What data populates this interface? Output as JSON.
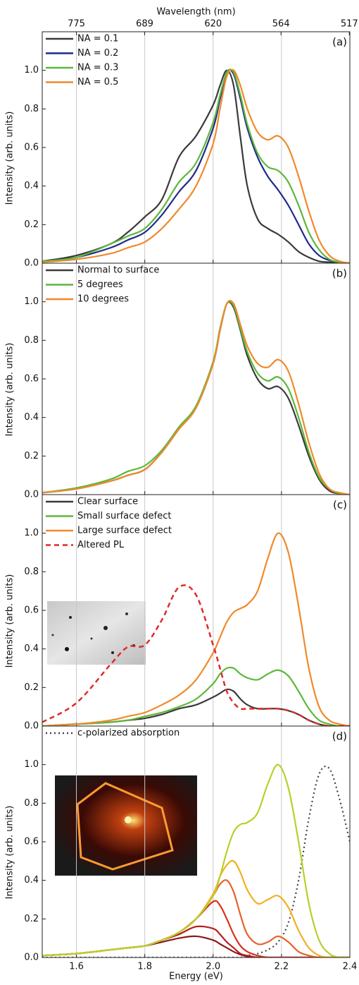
{
  "chart_data": [
    {
      "type": "line",
      "label": "(a)",
      "ylabel": "Intensity (arb. units)",
      "x2label": "Wavelength (nm)",
      "x2ticks": [
        775,
        689,
        620,
        564,
        517
      ],
      "x": [
        1.5,
        1.6,
        1.7,
        1.75,
        1.8,
        1.85,
        1.9,
        1.95,
        2.0,
        2.02,
        2.04,
        2.06,
        2.08,
        2.1,
        2.13,
        2.16,
        2.19,
        2.22,
        2.25,
        2.28,
        2.31,
        2.34,
        2.37,
        2.4
      ],
      "xlim": [
        1.5,
        2.4
      ],
      "xticks": [
        1.6,
        1.8,
        2,
        2.2,
        2.4
      ],
      "ylim": [
        0,
        1.2
      ],
      "yticks": [
        {
          "value": 0,
          "label": "0.0"
        },
        0.2,
        0.4,
        0.6,
        0.8,
        {
          "value": 1,
          "label": "1.0"
        }
      ],
      "grid": "x",
      "legend": "upper left",
      "series": [
        {
          "name": "NA = 0.1",
          "color": "#3a3a3a",
          "values": [
            0.01,
            0.04,
            0.1,
            0.16,
            0.24,
            0.33,
            0.55,
            0.66,
            0.82,
            0.92,
            1.0,
            0.92,
            0.65,
            0.4,
            0.23,
            0.18,
            0.15,
            0.11,
            0.06,
            0.03,
            0.01,
            0.005,
            0,
            0
          ]
        },
        {
          "name": "NA = 0.2",
          "color": "#1f2a8c",
          "values": [
            0.01,
            0.03,
            0.08,
            0.12,
            0.16,
            0.25,
            0.37,
            0.48,
            0.7,
            0.85,
            0.99,
            0.98,
            0.85,
            0.7,
            0.55,
            0.45,
            0.38,
            0.3,
            0.2,
            0.1,
            0.04,
            0.015,
            0.005,
            0
          ]
        },
        {
          "name": "NA = 0.3",
          "color": "#5cb83a",
          "values": [
            0.01,
            0.03,
            0.1,
            0.14,
            0.18,
            0.28,
            0.42,
            0.52,
            0.73,
            0.87,
            0.99,
            0.99,
            0.87,
            0.72,
            0.57,
            0.5,
            0.48,
            0.42,
            0.3,
            0.16,
            0.07,
            0.02,
            0.005,
            0
          ]
        },
        {
          "name": "NA = 0.5",
          "color": "#f0892a",
          "values": [
            0.005,
            0.02,
            0.05,
            0.08,
            0.11,
            0.18,
            0.28,
            0.4,
            0.62,
            0.8,
            0.97,
            1.0,
            0.92,
            0.8,
            0.68,
            0.64,
            0.66,
            0.6,
            0.45,
            0.27,
            0.12,
            0.04,
            0.01,
            0
          ]
        }
      ]
    },
    {
      "type": "line",
      "label": "(b)",
      "ylabel": "Intensity (arb. units)",
      "x": [
        1.5,
        1.6,
        1.7,
        1.75,
        1.8,
        1.85,
        1.9,
        1.95,
        2.0,
        2.02,
        2.04,
        2.06,
        2.08,
        2.1,
        2.13,
        2.16,
        2.19,
        2.22,
        2.25,
        2.28,
        2.31,
        2.34,
        2.37,
        2.4
      ],
      "xlim": [
        1.5,
        2.4
      ],
      "xticks": [
        1.6,
        1.8,
        2,
        2.2,
        2.4
      ],
      "ylim": [
        0,
        1.2
      ],
      "yticks": [
        {
          "value": 0,
          "label": "0.0"
        },
        0.2,
        0.4,
        0.6,
        0.8,
        {
          "value": 1,
          "label": "1.0"
        }
      ],
      "grid": "x",
      "legend": "upper left",
      "series": [
        {
          "name": "Normal to surface",
          "color": "#3a3a3a",
          "values": [
            0.01,
            0.03,
            0.07,
            0.1,
            0.13,
            0.22,
            0.34,
            0.45,
            0.68,
            0.85,
            0.99,
            0.97,
            0.85,
            0.72,
            0.6,
            0.55,
            0.56,
            0.5,
            0.36,
            0.2,
            0.08,
            0.02,
            0.005,
            0
          ]
        },
        {
          "name": "5 degrees",
          "color": "#5cb83a",
          "values": [
            0.01,
            0.035,
            0.08,
            0.12,
            0.15,
            0.23,
            0.35,
            0.46,
            0.69,
            0.86,
            0.99,
            0.98,
            0.86,
            0.74,
            0.63,
            0.59,
            0.61,
            0.55,
            0.4,
            0.22,
            0.09,
            0.03,
            0.005,
            0
          ]
        },
        {
          "name": "10 degrees",
          "color": "#f0892a",
          "values": [
            0.01,
            0.03,
            0.07,
            0.1,
            0.13,
            0.22,
            0.34,
            0.45,
            0.68,
            0.85,
            0.99,
            0.99,
            0.88,
            0.77,
            0.68,
            0.66,
            0.7,
            0.64,
            0.47,
            0.27,
            0.11,
            0.03,
            0.01,
            0
          ]
        }
      ]
    },
    {
      "type": "line",
      "label": "(c)",
      "ylabel": "Intensity (arb. units)",
      "x": [
        1.5,
        1.6,
        1.7,
        1.75,
        1.8,
        1.85,
        1.9,
        1.95,
        2.0,
        2.02,
        2.04,
        2.06,
        2.08,
        2.1,
        2.13,
        2.16,
        2.19,
        2.22,
        2.25,
        2.28,
        2.31,
        2.34,
        2.37,
        2.4
      ],
      "xlim": [
        1.5,
        2.4
      ],
      "xticks": [
        1.6,
        1.8,
        2,
        2.2,
        2.4
      ],
      "ylim": [
        0,
        1.2
      ],
      "yticks": [
        {
          "value": 0,
          "label": "0.0"
        },
        0.2,
        0.4,
        0.6,
        0.8,
        {
          "value": 1,
          "label": "1.0"
        }
      ],
      "grid": "x",
      "legend": "upper left",
      "series": [
        {
          "name": "Clear surface",
          "color": "#3a3a3a",
          "values": [
            0,
            0.01,
            0.02,
            0.03,
            0.04,
            0.06,
            0.09,
            0.11,
            0.15,
            0.17,
            0.19,
            0.18,
            0.14,
            0.11,
            0.09,
            0.09,
            0.09,
            0.08,
            0.06,
            0.03,
            0.01,
            0,
            0,
            0
          ]
        },
        {
          "name": "Small surface defect",
          "color": "#5cb83a",
          "values": [
            0,
            0.01,
            0.02,
            0.03,
            0.05,
            0.07,
            0.1,
            0.14,
            0.22,
            0.27,
            0.3,
            0.3,
            0.27,
            0.25,
            0.24,
            0.27,
            0.29,
            0.26,
            0.18,
            0.09,
            0.03,
            0.01,
            0,
            0
          ]
        },
        {
          "name": "Large surface defect",
          "color": "#f0892a",
          "values": [
            0,
            0.01,
            0.03,
            0.05,
            0.07,
            0.11,
            0.16,
            0.24,
            0.38,
            0.46,
            0.54,
            0.59,
            0.61,
            0.63,
            0.7,
            0.87,
            1.0,
            0.9,
            0.62,
            0.3,
            0.1,
            0.03,
            0.01,
            0
          ]
        },
        {
          "name": "Altered PL",
          "color": "#e02a2a",
          "dash": "dashed",
          "values": [
            0.02,
            0.12,
            0.32,
            0.41,
            0.42,
            0.55,
            0.72,
            0.68,
            0.42,
            0.3,
            0.18,
            0.12,
            0.09,
            0.09,
            0.09,
            0.09,
            0.09,
            0.08,
            0.06,
            0.03,
            0.01,
            0,
            0,
            0
          ]
        }
      ]
    },
    {
      "type": "line",
      "label": "(d)",
      "ylabel": "Intensity (arb. units)",
      "xlabel": "Energy (eV)",
      "x": [
        1.5,
        1.6,
        1.7,
        1.75,
        1.8,
        1.85,
        1.9,
        1.95,
        2.0,
        2.02,
        2.04,
        2.06,
        2.08,
        2.1,
        2.13,
        2.16,
        2.19,
        2.22,
        2.25,
        2.28,
        2.31,
        2.34,
        2.37,
        2.4
      ],
      "xlim": [
        1.5,
        2.4
      ],
      "xticks": [
        1.6,
        1.8,
        {
          "value": 2,
          "label": "2.0"
        },
        2.2,
        2.4
      ],
      "ylim": [
        0,
        1.2
      ],
      "yticks": [
        {
          "value": 0,
          "label": "0.0"
        },
        0.2,
        0.4,
        0.6,
        0.8,
        {
          "value": 1,
          "label": "1.0"
        }
      ],
      "grid": "x",
      "legend": "upper left",
      "series": [
        {
          "name": "c-polarized absorption",
          "color": "#444444",
          "dash": "dotted",
          "values": [
            0,
            0,
            0,
            0,
            0,
            0,
            0,
            0,
            0,
            0,
            0,
            0,
            0,
            0.01,
            0.02,
            0.04,
            0.08,
            0.18,
            0.4,
            0.72,
            0.95,
            0.98,
            0.82,
            0.6
          ]
        },
        {
          "color": "#8b1a1a",
          "values": [
            0.01,
            0.02,
            0.04,
            0.05,
            0.06,
            0.08,
            0.1,
            0.11,
            0.09,
            0.07,
            0.05,
            0.03,
            0.015,
            0.005,
            0,
            0,
            0,
            0,
            0,
            0,
            0,
            0,
            0,
            0
          ]
        },
        {
          "color": "#b81e1e",
          "values": [
            0.01,
            0.02,
            0.04,
            0.05,
            0.06,
            0.09,
            0.12,
            0.16,
            0.15,
            0.12,
            0.08,
            0.05,
            0.02,
            0.01,
            0,
            0,
            0,
            0,
            0,
            0,
            0,
            0,
            0,
            0
          ]
        },
        {
          "color": "#d83020",
          "values": [
            0.01,
            0.02,
            0.04,
            0.05,
            0.06,
            0.09,
            0.13,
            0.2,
            0.29,
            0.27,
            0.2,
            0.12,
            0.06,
            0.03,
            0.01,
            0,
            0,
            0,
            0,
            0,
            0,
            0,
            0,
            0
          ]
        },
        {
          "color": "#e8602a",
          "values": [
            0.01,
            0.02,
            0.04,
            0.05,
            0.06,
            0.09,
            0.13,
            0.2,
            0.32,
            0.38,
            0.4,
            0.34,
            0.22,
            0.12,
            0.07,
            0.08,
            0.11,
            0.08,
            0.03,
            0.01,
            0,
            0,
            0,
            0
          ]
        },
        {
          "color": "#f2b020",
          "values": [
            0.01,
            0.02,
            0.04,
            0.05,
            0.06,
            0.09,
            0.13,
            0.2,
            0.33,
            0.42,
            0.48,
            0.5,
            0.44,
            0.35,
            0.28,
            0.3,
            0.32,
            0.26,
            0.14,
            0.05,
            0.01,
            0,
            0,
            0
          ]
        },
        {
          "color": "#b8d02a",
          "values": [
            0.01,
            0.02,
            0.04,
            0.05,
            0.06,
            0.09,
            0.13,
            0.2,
            0.32,
            0.42,
            0.55,
            0.65,
            0.69,
            0.7,
            0.75,
            0.9,
            1.0,
            0.88,
            0.6,
            0.28,
            0.09,
            0.02,
            0,
            0
          ]
        }
      ]
    }
  ]
}
